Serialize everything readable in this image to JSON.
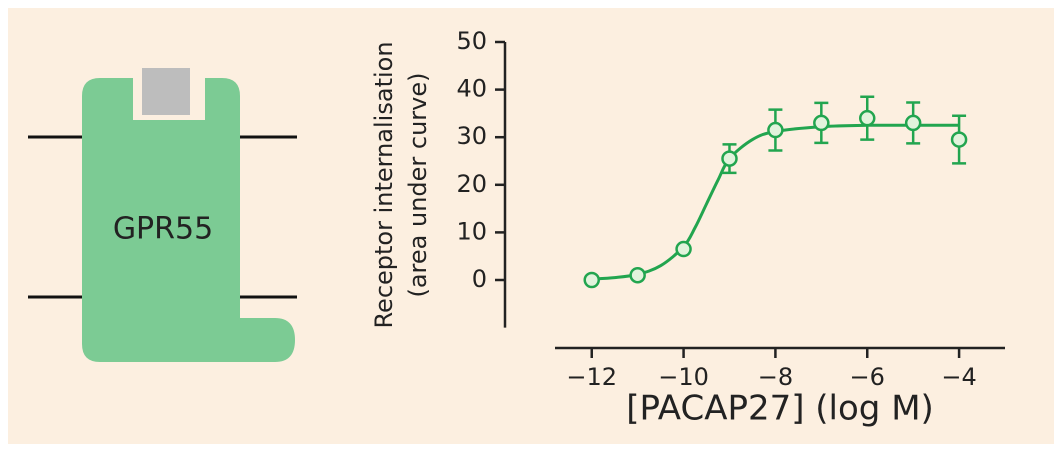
{
  "diagram": {
    "label": "GPR55"
  },
  "chart_data": {
    "type": "scatter",
    "x_label": "[PACAP27] (log M)",
    "y_label": [
      "Receptor internalisation",
      "(area under curve)"
    ],
    "x": [
      -12,
      -11,
      -10,
      -9,
      -8,
      -7,
      -6,
      -5,
      -4
    ],
    "values": [
      0,
      1,
      6.5,
      25.5,
      31.5,
      33,
      34,
      33,
      29.5
    ],
    "errors": [
      null,
      null,
      null,
      3,
      4.3,
      4.2,
      4.5,
      4.3,
      5
    ],
    "fit_curve": {
      "x": [
        -12,
        -11.5,
        -11,
        -10.5,
        -10,
        -9.75,
        -9.5,
        -9.25,
        -9,
        -8.5,
        -8,
        -7,
        -6,
        -5,
        -4
      ],
      "values": [
        0.2,
        0.5,
        1.2,
        3,
        7,
        11,
        16,
        21,
        25.5,
        29.5,
        31.2,
        32.2,
        32.5,
        32.5,
        32.5
      ]
    },
    "color": "#22a54f",
    "xlim": [
      -12.8,
      -3
    ],
    "ylim": [
      -10,
      50
    ],
    "xticks": [
      {
        "value": -12,
        "label": "−12"
      },
      {
        "value": -10,
        "label": "−10"
      },
      {
        "value": -8,
        "label": "−8"
      },
      {
        "value": -6,
        "label": "−6"
      },
      {
        "value": -4,
        "label": "−4"
      }
    ],
    "yticks": [
      0,
      10,
      20,
      30,
      40,
      50
    ]
  }
}
